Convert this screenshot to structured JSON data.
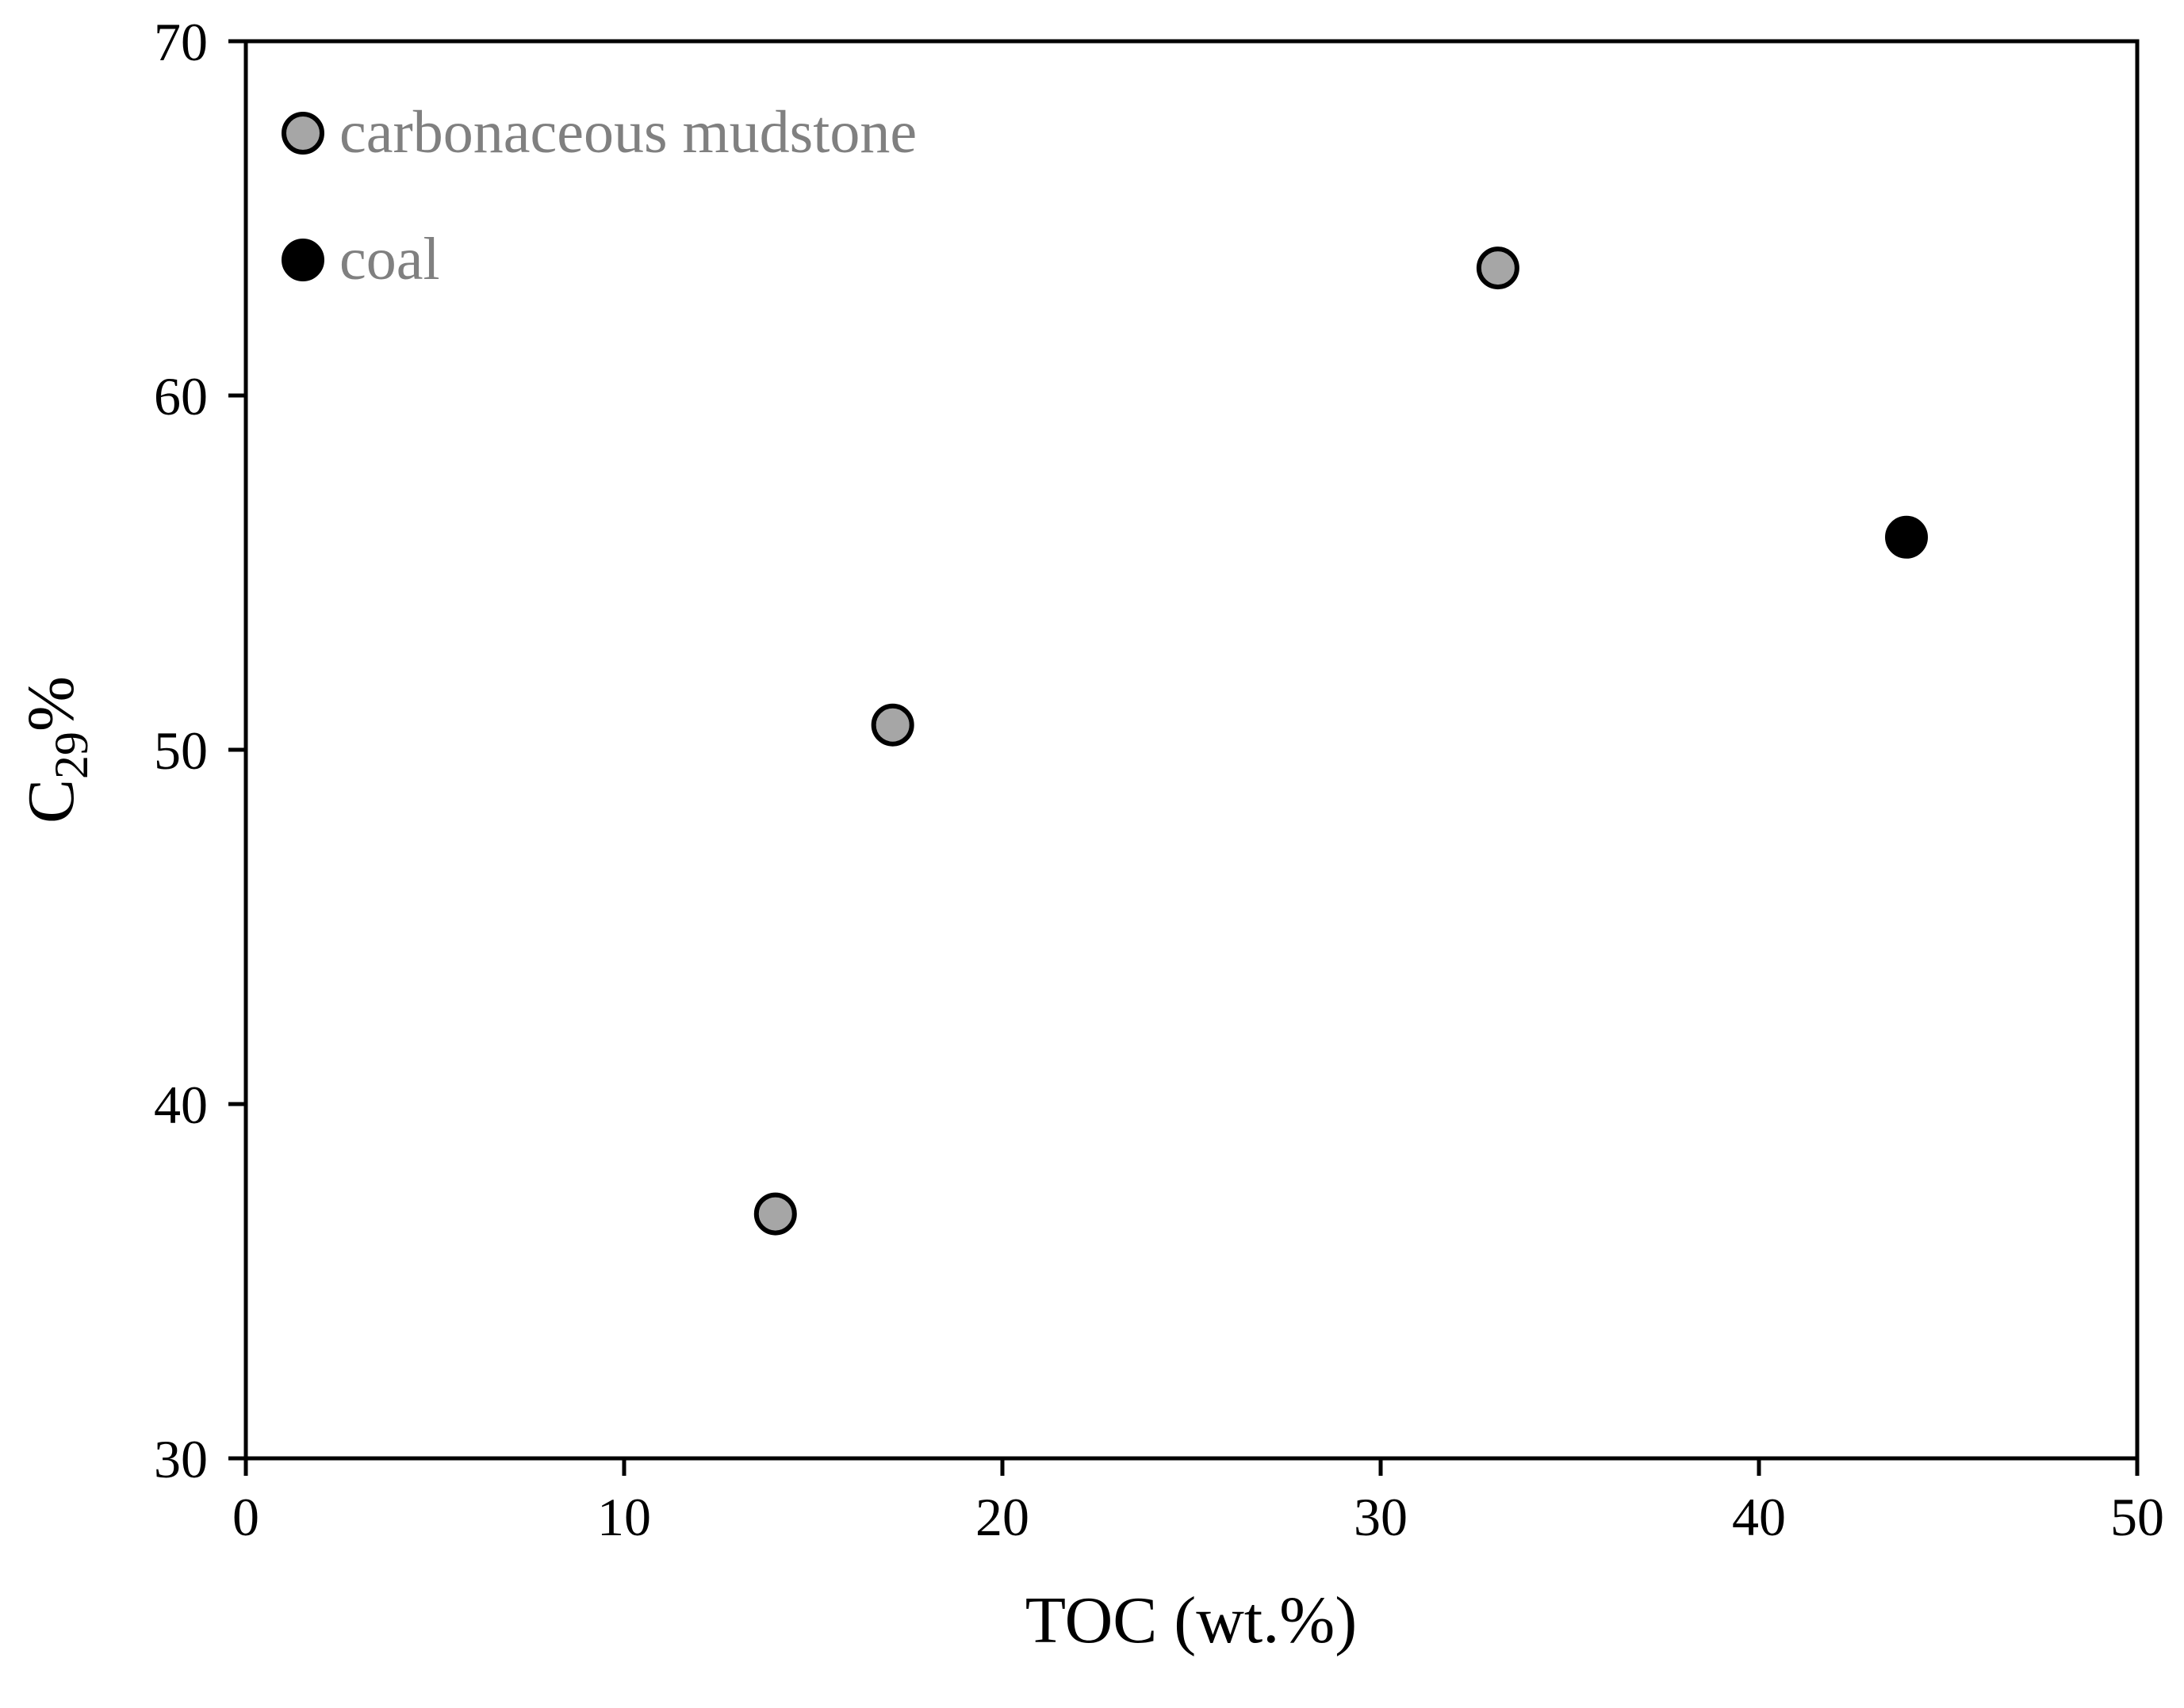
{
  "chart_data": {
    "type": "scatter",
    "title": "",
    "xlabel": "TOC (wt.%)",
    "ylabel": {
      "main": "C",
      "subscript": "29",
      "suffix": "%"
    },
    "xlim": [
      0,
      50
    ],
    "ylim": [
      30,
      70
    ],
    "x_ticks": [
      0,
      10,
      20,
      30,
      40,
      50
    ],
    "y_ticks": [
      30,
      40,
      50,
      60,
      70
    ],
    "x_tick_labels": [
      "0",
      "10",
      "20",
      "30",
      "40",
      "50"
    ],
    "y_tick_labels": [
      "30",
      "40",
      "50",
      "60",
      "70"
    ],
    "grid": false,
    "legend_position": "top-left",
    "series": [
      {
        "name": "carbonaceous mudstone",
        "fill": "#a6a6a6",
        "stroke": "#000000",
        "label_color": "#808080",
        "points": [
          {
            "x": 14.0,
            "y": 36.9
          },
          {
            "x": 17.1,
            "y": 50.7
          },
          {
            "x": 33.1,
            "y": 63.6
          }
        ]
      },
      {
        "name": "coal",
        "fill": "#000000",
        "stroke": "#000000",
        "label_color": "#808080",
        "points": [
          {
            "x": 43.9,
            "y": 56.0
          }
        ]
      }
    ]
  }
}
